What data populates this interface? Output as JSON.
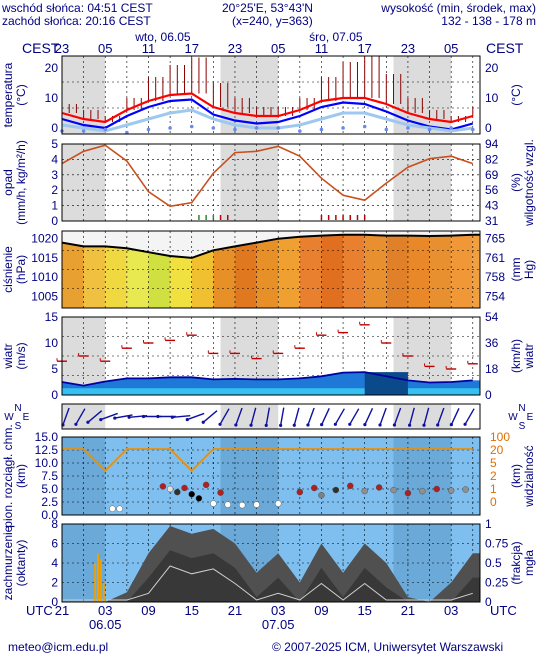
{
  "header": {
    "sunrise": "wschód słońca: 04:51 CEST",
    "sunset": "zachód słońca: 20:16 CEST",
    "coords": "20°25'E, 53°43'N",
    "grid": "(x=240,  y=363)",
    "elev_label": "wysokość (min, środek, max)",
    "elev_values": "132 - 138 - 178 m"
  },
  "time_axis": {
    "tz": "CEST",
    "day_labels": [
      {
        "text": "wto, 06.05",
        "hour": 14
      },
      {
        "text": "śro, 07.05",
        "hour": 38
      }
    ],
    "top_ticks": [
      {
        "text": "23",
        "hour": 0
      },
      {
        "text": "05",
        "hour": 6
      },
      {
        "text": "11",
        "hour": 12
      },
      {
        "text": "17",
        "hour": 18
      },
      {
        "text": "23",
        "hour": 24
      },
      {
        "text": "05",
        "hour": 30
      },
      {
        "text": "11",
        "hour": 36
      },
      {
        "text": "17",
        "hour": 42
      },
      {
        "text": "23",
        "hour": 48
      },
      {
        "text": "05",
        "hour": 54
      }
    ],
    "bottom_tz": "UTC",
    "bottom_ticks": [
      {
        "text": "21",
        "hour": 0
      },
      {
        "text": "03",
        "hour": 6
      },
      {
        "text": "09",
        "hour": 12
      },
      {
        "text": "15",
        "hour": 18
      },
      {
        "text": "21",
        "hour": 24
      },
      {
        "text": "03",
        "hour": 30
      },
      {
        "text": "09",
        "hour": 36
      },
      {
        "text": "15",
        "hour": 42
      },
      {
        "text": "21",
        "hour": 48
      },
      {
        "text": "03",
        "hour": 54
      }
    ],
    "bottom_dates": [
      {
        "text": "06.05",
        "hour": 6
      },
      {
        "text": "07.05",
        "hour": 30
      }
    ],
    "night_bands": [
      [
        0,
        6
      ],
      [
        22,
        30
      ],
      [
        46,
        54
      ]
    ]
  },
  "footer": {
    "email": "meteo@icm.edu.pl",
    "copyright": "© 2007-2025 ICM, Uniwersytet Warszawski"
  },
  "chart_data": [
    {
      "type": "line",
      "id": "temperature",
      "ylabel_left": "temperatura (°C)",
      "ylabel_right": "(°C)",
      "left_ticks": [
        "20",
        "10",
        "0"
      ],
      "right_ticks": [
        "20",
        "10",
        "0"
      ],
      "ylim": [
        -2,
        24
      ],
      "x_hours": [
        0,
        3,
        6,
        9,
        12,
        15,
        18,
        21,
        24,
        27,
        30,
        33,
        36,
        39,
        42,
        45,
        48,
        51,
        54,
        57
      ],
      "series": [
        {
          "color": "#ff0000",
          "values": [
            5,
            3,
            2,
            6,
            9,
            11,
            11.5,
            7,
            5,
            4,
            4,
            6,
            9,
            10,
            10,
            8,
            5,
            3,
            2,
            4
          ]
        },
        {
          "color": "#0000ff",
          "values": [
            3,
            1,
            0,
            4,
            7,
            9,
            9.5,
            4.5,
            2.5,
            1.5,
            2,
            4,
            7,
            8.5,
            8,
            5.5,
            2.5,
            0.5,
            -0.5,
            1.5
          ]
        },
        {
          "color": "#9ec8f0",
          "values": [
            1,
            0,
            -1,
            1,
            3,
            5,
            6,
            3,
            1,
            0,
            0,
            1,
            3,
            5,
            5,
            3,
            1,
            0,
            -1,
            0
          ]
        }
      ],
      "dew_points": [
        -1,
        -1,
        -0.5,
        -1.5,
        -0.5,
        0,
        0.5,
        0,
        -0.5,
        0,
        0,
        -1,
        -0.5,
        0,
        0.5,
        -0.5,
        0,
        -0.5,
        0,
        -0.5
      ],
      "max_spikes": [
        3,
        3,
        2,
        4,
        8,
        10,
        12,
        8,
        5,
        3,
        3,
        4,
        8,
        12,
        14,
        10,
        5,
        3,
        2,
        3
      ]
    },
    {
      "type": "line",
      "id": "precipitation",
      "ylabel_left": "opad (mm/h, kg/m²/h)",
      "ylabel_right": "wilgotność wzgl. (%)",
      "left_ticks": [
        "5",
        "4",
        "3",
        "2",
        "1",
        "0"
      ],
      "right_ticks": [
        "94",
        "82",
        "69",
        "56",
        "43",
        "31"
      ],
      "ylim": [
        0,
        5
      ],
      "humidity_ylim": [
        31,
        94
      ],
      "humidity_x": [
        0,
        3,
        6,
        9,
        12,
        15,
        18,
        21,
        24,
        27,
        30,
        33,
        36,
        39,
        42,
        45,
        48,
        51,
        54,
        57
      ],
      "humidity": [
        78,
        88,
        93,
        80,
        55,
        43,
        46,
        70,
        87,
        88,
        92,
        84,
        66,
        52,
        48,
        62,
        75,
        82,
        84,
        78
      ],
      "precip_marks_hours": [
        19,
        20,
        21,
        22,
        23,
        36,
        37,
        38,
        39,
        40,
        41,
        42
      ]
    },
    {
      "type": "area",
      "id": "pressure",
      "ylabel_left": "ciśnienie (hPa)",
      "ylabel_right": "(mm Hg)",
      "left_ticks": [
        "1020",
        "1015",
        "1010",
        "1005"
      ],
      "right_ticks": [
        "765",
        "761",
        "758",
        "754"
      ],
      "ylim": [
        1002,
        1022
      ],
      "x_hours": [
        0,
        3,
        6,
        9,
        12,
        15,
        18,
        21,
        24,
        27,
        30,
        33,
        36,
        39,
        42,
        45,
        48,
        51,
        54,
        57
      ],
      "values": [
        1019,
        1018,
        1018,
        1017.5,
        1016.5,
        1015.5,
        1015,
        1017,
        1018,
        1019,
        1020,
        1020.5,
        1020.8,
        1021,
        1021,
        1020.8,
        1020.8,
        1020.7,
        1020.8,
        1021
      ]
    },
    {
      "type": "line",
      "id": "wind",
      "ylabel_left": "wiatr (m/s)",
      "ylabel_right": "(km/h) wiatr",
      "left_ticks": [
        "15",
        "10",
        "5",
        "0"
      ],
      "right_ticks": [
        "54",
        "36",
        "18",
        "0"
      ],
      "ylim": [
        0,
        15
      ],
      "x_hours": [
        0,
        3,
        6,
        9,
        12,
        15,
        18,
        21,
        24,
        27,
        30,
        33,
        36,
        39,
        42,
        45,
        48,
        51,
        54,
        57
      ],
      "speed": [
        2.5,
        1.8,
        2.6,
        3.2,
        3.2,
        3.4,
        3.4,
        3.0,
        3.1,
        3.0,
        3.0,
        3.2,
        3.6,
        4.3,
        4.4,
        3.6,
        2.8,
        2.4,
        2.5,
        2.8
      ],
      "gust_marks": [
        6.5,
        7.5,
        6.5,
        9,
        10,
        10.5,
        11.5,
        8,
        8,
        7,
        8,
        9,
        11.5,
        12,
        13.5,
        10,
        7.5,
        5.5,
        5,
        6
      ]
    },
    {
      "type": "scatter",
      "id": "wind_direction",
      "left_label": "W N S E",
      "right_label": "W N S E",
      "x_hours": [
        0,
        2,
        4,
        6,
        8,
        10,
        12,
        14,
        16,
        18,
        20,
        22,
        24,
        26,
        28,
        30,
        32,
        34,
        36,
        38,
        40,
        42,
        44,
        46,
        48,
        50,
        52,
        54,
        56
      ],
      "direction_deg": [
        200,
        210,
        230,
        250,
        260,
        265,
        270,
        270,
        265,
        250,
        230,
        210,
        200,
        195,
        190,
        190,
        195,
        200,
        205,
        210,
        210,
        205,
        200,
        200,
        195,
        195,
        200,
        205,
        210
      ]
    },
    {
      "type": "line",
      "id": "cloud_visibility",
      "ylabel_left": "pion. rozciągł. chm. (km)",
      "ylabel_right": "(km) widzialność",
      "left_ticks": [
        "15.0",
        "12.5",
        "10.0",
        "7.5",
        "5.0",
        "2.5",
        "0.0"
      ],
      "right_ticks": [
        "100",
        "20",
        "5",
        "2",
        "1",
        "0"
      ],
      "ylim": [
        0,
        15
      ],
      "visibility_x": [
        0,
        3,
        6,
        9,
        12,
        15,
        18,
        21,
        24,
        27,
        30,
        33,
        36,
        39,
        42,
        45,
        48,
        51,
        54,
        57
      ],
      "visibility_right_units": [
        20,
        20,
        5,
        20,
        20,
        20,
        5,
        20,
        20,
        20,
        20,
        20,
        20,
        20,
        20,
        20,
        20,
        20,
        20,
        20
      ],
      "cloud_points": [
        {
          "hour": 7,
          "km": 1.2,
          "c": "#ffffff"
        },
        {
          "hour": 8,
          "km": 1.2,
          "c": "#ffffff"
        },
        {
          "hour": 14,
          "km": 5.5,
          "c": "#b02020"
        },
        {
          "hour": 15,
          "km": 5.0,
          "c": "#e0e0e0"
        },
        {
          "hour": 16,
          "km": 4.4,
          "c": "#303030"
        },
        {
          "hour": 17,
          "km": 5.2,
          "c": "#b02020"
        },
        {
          "hour": 18,
          "km": 4.0,
          "c": "#000000"
        },
        {
          "hour": 19,
          "km": 3.2,
          "c": "#000000"
        },
        {
          "hour": 20,
          "km": 5.8,
          "c": "#b02020"
        },
        {
          "hour": 21,
          "km": 2.2,
          "c": "#ffffff"
        },
        {
          "hour": 22,
          "km": 4.3,
          "c": "#b02020"
        },
        {
          "hour": 23,
          "km": 2.0,
          "c": "#ffffff"
        },
        {
          "hour": 25,
          "km": 1.9,
          "c": "#ffffff"
        },
        {
          "hour": 27,
          "km": 2.0,
          "c": "#ffffff"
        },
        {
          "hour": 30,
          "km": 2.2,
          "c": "#ffffff"
        },
        {
          "hour": 33,
          "km": 4.4,
          "c": "#b02020"
        },
        {
          "hour": 35,
          "km": 5.2,
          "c": "#b02020"
        },
        {
          "hour": 36,
          "km": 3.8,
          "c": "#808080"
        },
        {
          "hour": 38,
          "km": 4.8,
          "c": "#303030"
        },
        {
          "hour": 40,
          "km": 5.6,
          "c": "#b02020"
        },
        {
          "hour": 42,
          "km": 4.6,
          "c": "#909090"
        },
        {
          "hour": 44,
          "km": 5.3,
          "c": "#b02020"
        },
        {
          "hour": 46,
          "km": 4.8,
          "c": "#909090"
        },
        {
          "hour": 48,
          "km": 4.2,
          "c": "#b02020"
        },
        {
          "hour": 50,
          "km": 4.6,
          "c": "#909090"
        },
        {
          "hour": 52,
          "km": 5.0,
          "c": "#b02020"
        },
        {
          "hour": 54,
          "km": 4.7,
          "c": "#909090"
        },
        {
          "hour": 56,
          "km": 4.9,
          "c": "#909090"
        }
      ]
    },
    {
      "type": "area",
      "id": "cloud_cover",
      "ylabel_left": "zachmurzenie (oktanty)",
      "ylabel_right": "(frakcja) mgła",
      "left_ticks": [
        "8",
        "6",
        "4",
        "2",
        "0"
      ],
      "right_ticks": [
        "1",
        "0.75",
        "0.5",
        "0.25",
        "0"
      ],
      "ylim": [
        0,
        8
      ],
      "x_hours": [
        0,
        3,
        6,
        9,
        12,
        15,
        18,
        21,
        24,
        27,
        30,
        33,
        36,
        39,
        42,
        45,
        48,
        51,
        54,
        57
      ],
      "cloud_octants": [
        0,
        0,
        0,
        1,
        5,
        7.8,
        7,
        7.5,
        6,
        3,
        5,
        2,
        6,
        3,
        6,
        4,
        0.5,
        0,
        2,
        5
      ],
      "fog_bars_hours": [
        4.6,
        5.0,
        5.4,
        5.8
      ],
      "fog_values": [
        0.5,
        0.62,
        0.55,
        0.25
      ]
    }
  ]
}
